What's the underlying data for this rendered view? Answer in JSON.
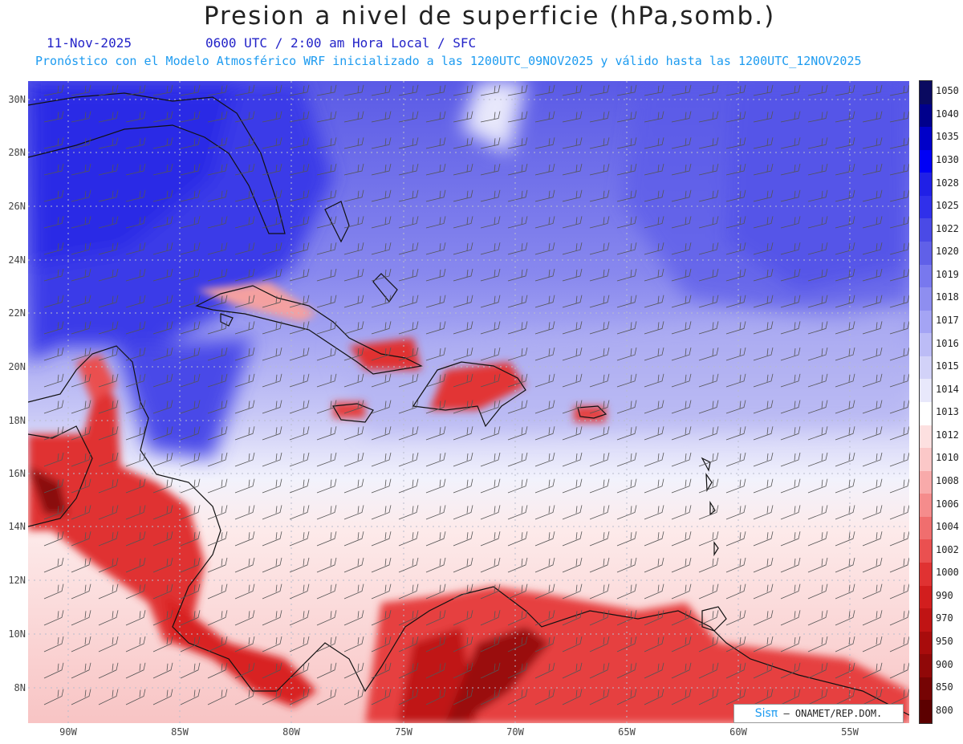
{
  "header": {
    "title": "Presion a nivel de superficie (hPa,somb.)",
    "date": "11-Nov-2025",
    "valid_time": "0600 UTC / 2:00 am Hora Local / SFC",
    "forecast_note": "Pronóstico con el Modelo Atmosférico WRF inicializado a las 1200UTC_09NOV2025 y válido hasta las  1200UTC_12NOV2025"
  },
  "map": {
    "lat_labels": [
      "30N",
      "28N",
      "26N",
      "24N",
      "22N",
      "20N",
      "18N",
      "16N",
      "14N",
      "12N",
      "10N",
      "8N"
    ],
    "lon_labels": [
      "90W",
      "85W",
      "80W",
      "75W",
      "70W",
      "65W",
      "60W",
      "55W"
    ],
    "land_color": "#111111",
    "grid_color": "#9aa0b4"
  },
  "colorbar": {
    "levels": [
      "1050",
      "1040",
      "1035",
      "1030",
      "1028",
      "1025",
      "1022",
      "1020",
      "1019",
      "1018",
      "1017",
      "1016",
      "1015",
      "1014",
      "1013",
      "1012",
      "1010",
      "1008",
      "1006",
      "1004",
      "1002",
      "1000",
      "990",
      "970",
      "950",
      "900",
      "850",
      "800"
    ],
    "colors": [
      "#0a0a60",
      "#00008c",
      "#0000c8",
      "#0000f5",
      "#2020e6",
      "#3030ea",
      "#4a4ae6",
      "#6060e8",
      "#7878ee",
      "#8e8ef0",
      "#a4a4f4",
      "#bcbcf6",
      "#d2d2f8",
      "#e8e8fb",
      "#ffffff",
      "#fde0e0",
      "#fbc8c8",
      "#f8aaaa",
      "#f58c8c",
      "#f06e6e",
      "#ea5050",
      "#e03232",
      "#d21e1e",
      "#c01414",
      "#a80c0c",
      "#900808",
      "#760404",
      "#5c0000"
    ]
  },
  "credit": {
    "logo": "Sisπ",
    "text": "– ONAMET/REP.DOM."
  }
}
